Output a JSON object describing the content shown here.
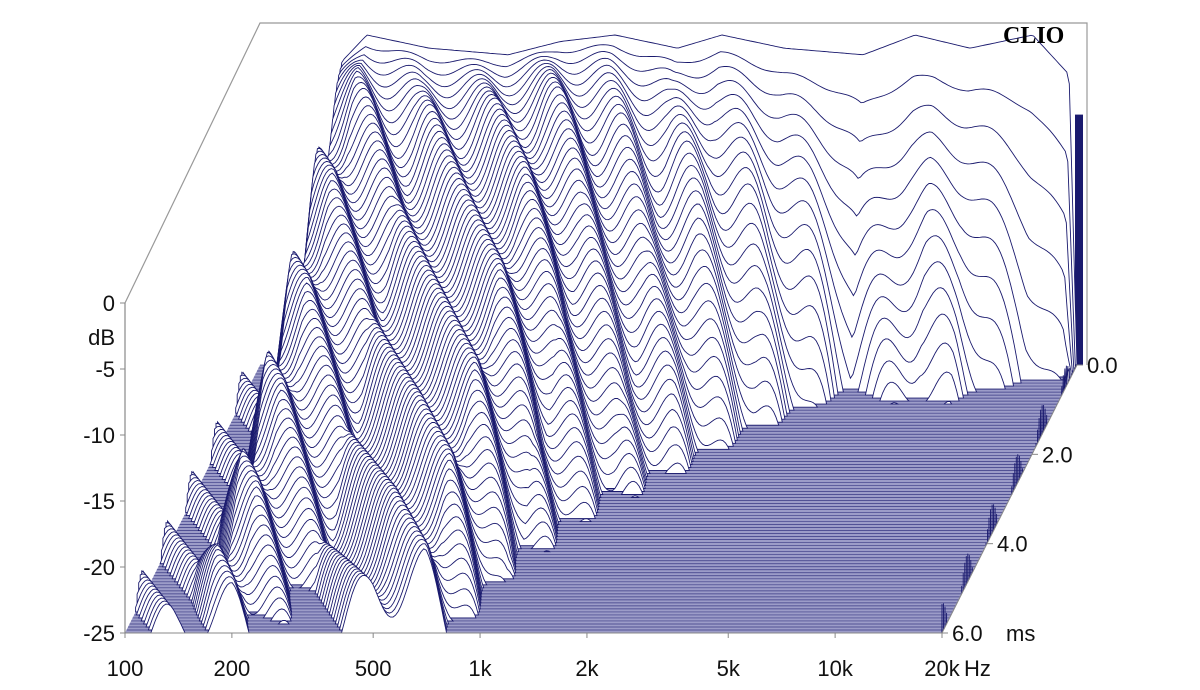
{
  "chart_data": {
    "type": "waterfall",
    "brand": "CLIO",
    "x_axis": {
      "unit": "Hz",
      "scale": "log",
      "range": [
        100,
        20000
      ],
      "tick_values": [
        100,
        200,
        500,
        1000,
        2000,
        5000,
        10000,
        20000
      ],
      "tick_labels": [
        "100",
        "200",
        "500",
        "1k",
        "2k",
        "5k",
        "10k",
        "20k"
      ]
    },
    "y_axis": {
      "unit": "dB",
      "range": [
        -25,
        0
      ],
      "tick_values": [
        0,
        -5,
        -10,
        -15,
        -20,
        -25
      ],
      "tick_labels": [
        "0",
        "-5",
        "-10",
        "-15",
        "-20",
        "-25"
      ]
    },
    "z_axis": {
      "unit": "ms",
      "range": [
        0,
        6
      ],
      "tick_values": [
        0,
        2,
        4,
        6
      ],
      "tick_labels": [
        "0.0",
        "2.0",
        "4.0",
        "6.0"
      ]
    },
    "initial_response": {
      "freq_hz": [
        140,
        170,
        200,
        300,
        500,
        700,
        1000,
        1500,
        2000,
        3000,
        5000,
        7000,
        10000,
        15000,
        19000,
        20000
      ],
      "level_db": [
        -25,
        -2,
        0,
        -1,
        -1.5,
        -0.5,
        0,
        -1,
        0,
        -1,
        -1.5,
        0,
        -1,
        0,
        -3,
        -25
      ]
    },
    "decay_to_floor": {
      "freq_hz": [
        150,
        200,
        300,
        500,
        700,
        1000,
        1500,
        2000,
        3000,
        5000,
        8000,
        10000,
        15000,
        20000
      ],
      "time_ms": [
        6.5,
        6.5,
        5,
        7,
        7.5,
        4.5,
        3,
        2.5,
        1.5,
        0.6,
        0.9,
        0.8,
        0.4,
        0.3
      ]
    },
    "colors": {
      "line": "#1a1a6e",
      "floor": "#9c9cc8",
      "surface": "#ffffff"
    }
  }
}
